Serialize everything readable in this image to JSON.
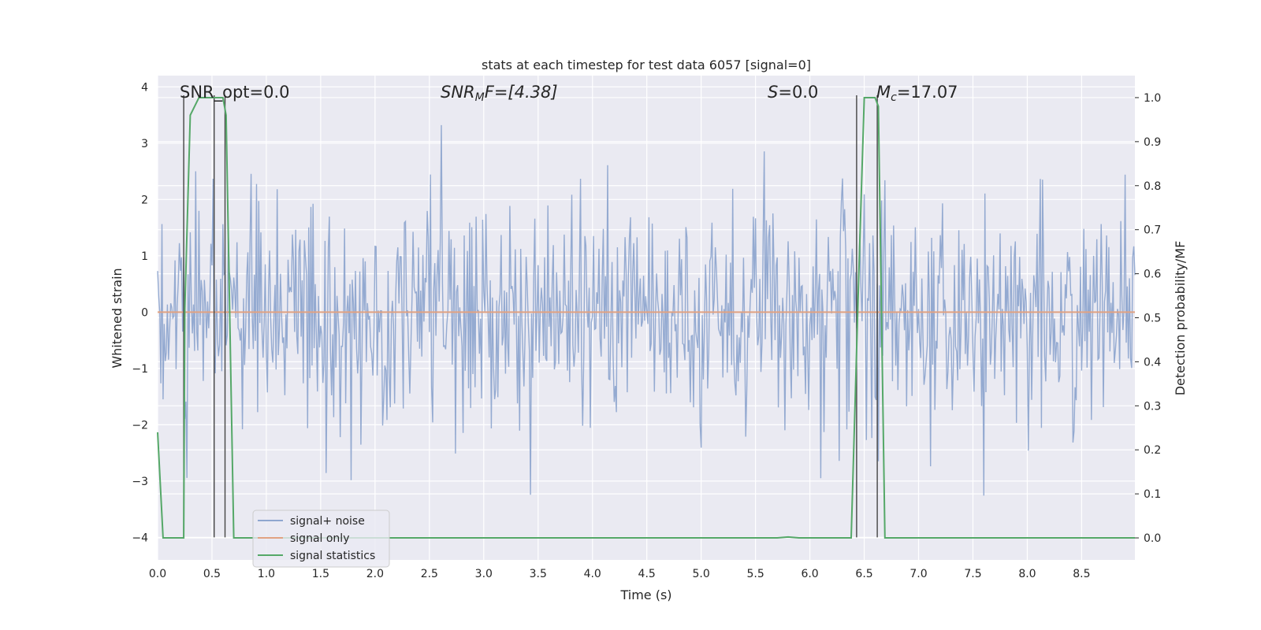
{
  "chart_data": {
    "type": "line",
    "title": "stats at each timestep for test data 6057 [signal=0]",
    "xlabel": "Time (s)",
    "ylabel_left": "Whitened strain",
    "ylabel_right": "Detection probability/MF",
    "xlim": [
      0.0,
      8.99
    ],
    "ylim_left": [
      -4.4,
      4.2
    ],
    "ylim_right": [
      -0.05,
      1.05
    ],
    "x_ticks": [
      "0.0",
      "0.5",
      "1.0",
      "1.5",
      "2.0",
      "2.5",
      "3.0",
      "3.5",
      "4.0",
      "4.5",
      "5.0",
      "5.5",
      "6.0",
      "6.5",
      "7.0",
      "7.5",
      "8.0",
      "8.5"
    ],
    "y_ticks_left": [
      "4",
      "3",
      "2",
      "1",
      "0",
      "−1",
      "−2",
      "−3",
      "−4"
    ],
    "y_ticks_right": [
      "1.0",
      "0.9",
      "0.8",
      "0.7",
      "0.6",
      "0.5",
      "0.4",
      "0.3",
      "0.2",
      "0.1",
      "0.0"
    ],
    "grid": true,
    "legend_position": "lower-left",
    "annotations": {
      "snr_opt": "SNR_opt=0.0",
      "snr_mf_label": "SNR",
      "snr_mf_sub": "M",
      "snr_mf_rest": "F=[4.38]",
      "s_label": "S",
      "s_rest": "=0.0",
      "mc_label": "M",
      "mc_sub": "c",
      "mc_rest": "=17.07"
    },
    "series": [
      {
        "name": "signal+ noise",
        "color": "#8fa6cf",
        "noise_sigma": 1.0,
        "sample_count": 900,
        "range": [
          -3.4,
          3.8
        ]
      },
      {
        "name": "signal only",
        "color": "#e1a282",
        "x": [
          0.0,
          8.99
        ],
        "y": [
          0.0,
          0.0
        ]
      },
      {
        "name": "signal statistics",
        "color": "#55a868",
        "axis": "right",
        "x": [
          0.0,
          0.05,
          0.24,
          0.25,
          0.3,
          0.38,
          0.6,
          0.63,
          0.7,
          5.7,
          5.8,
          5.9,
          6.38,
          6.45,
          6.5,
          6.6,
          6.63,
          6.69,
          8.99
        ],
        "y": [
          0.24,
          0.0,
          0.0,
          0.52,
          0.96,
          1.0,
          1.0,
          0.96,
          0.0,
          0.0,
          0.002,
          0.0,
          0.0,
          0.6,
          1.0,
          1.0,
          0.98,
          0.0,
          0.0
        ]
      }
    ],
    "vertical_markers": [
      0.24,
      0.52,
      0.62,
      6.43,
      6.62
    ]
  }
}
